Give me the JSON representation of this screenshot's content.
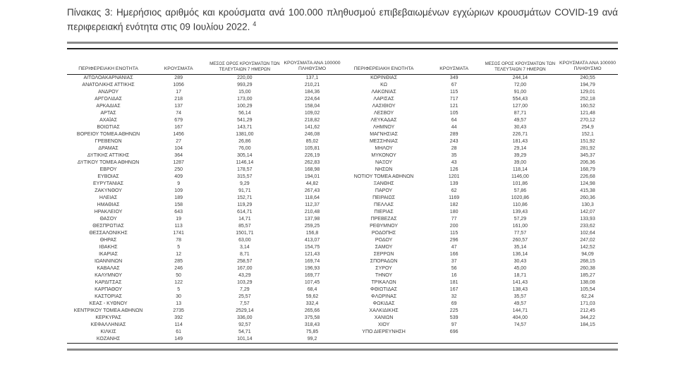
{
  "title": {
    "text": "Πίνακας 3:  Ημερήσιος αριθμός και κρούσματα ανά 100.000 πληθυσμού επιβεβαιωμένων εγχώριων κρουσμάτων COVID-19 ανά περιφερειακή ενότητα στις 09 Ιουλίου 2022.",
    "footnote_marker": "4"
  },
  "colors": {
    "text": "#3a3a3a",
    "rule_thick": "#8a8a8a",
    "rule_thin": "#1f1f1f",
    "background": "#ffffff"
  },
  "columns": [
    "ΠΕΡΙΦΕΡΕΙΑΚΗ ΕΝΟΤΗΤΑ",
    "ΚΡΟΥΣΜΑΤΑ",
    "ΜΕΣΟΣ ΟΡΟΣ ΚΡΟΥΣΜΑΤΩΝ ΤΩΝ ΤΕΛΕΥΤΑΙΩΝ 7 ΗΜΕΡΩΝ",
    "ΚΡΟΥΣΜΑΤΑ ΑΝΑ 100000 ΠΛΗΘΥΣΜΟ"
  ],
  "tables": [
    {
      "rows": [
        [
          "ΑΙΤΩΛΟΑΚΑΡΝΑΝΙΑΣ",
          "289",
          "220,00",
          "137,1"
        ],
        [
          "ΑΝΑΤΟΛΙΚΗΣ ΑΤΤΙΚΗΣ",
          "1056",
          "993,29",
          "210,21"
        ],
        [
          "ΑΝΔΡΟΥ",
          "17",
          "15,00",
          "184,36"
        ],
        [
          "ΑΡΓΟΛΙΔΑΣ",
          "218",
          "173,00",
          "224,64"
        ],
        [
          "ΑΡΚΑΔΙΑΣ",
          "137",
          "100,29",
          "158,04"
        ],
        [
          "ΑΡΤΑΣ",
          "74",
          "56,14",
          "109,02"
        ],
        [
          "ΑΧΑΪΑΣ",
          "679",
          "541,29",
          "218,82"
        ],
        [
          "ΒΟΙΩΤΙΑΣ",
          "167",
          "143,71",
          "141,62"
        ],
        [
          "ΒΟΡΕΙΟΥ ΤΟΜΕΑ ΑΘΗΝΩΝ",
          "1456",
          "1381,00",
          "246,08"
        ],
        [
          "ΓΡΕΒΕΝΩΝ",
          "27",
          "26,86",
          "85,02"
        ],
        [
          "ΔΡΑΜΑΣ",
          "104",
          "76,00",
          "105,81"
        ],
        [
          "ΔΥΤΙΚΗΣ ΑΤΤΙΚΗΣ",
          "364",
          "305,14",
          "226,19"
        ],
        [
          "ΔΥΤΙΚΟΥ ΤΟΜΕΑ ΑΘΗΝΩΝ",
          "1287",
          "1146,14",
          "262,83"
        ],
        [
          "ΕΒΡΟΥ",
          "250",
          "178,57",
          "168,98"
        ],
        [
          "ΕΥΒΟΙΑΣ",
          "409",
          "315,57",
          "194,01"
        ],
        [
          "ΕΥΡΥΤΑΝΙΑΣ",
          "9",
          "9,29",
          "44,82"
        ],
        [
          "ΖΑΚΥΝΘΟΥ",
          "109",
          "91,71",
          "267,43"
        ],
        [
          "ΗΛΕΙΑΣ",
          "189",
          "152,71",
          "118,64"
        ],
        [
          "ΗΜΑΘΙΑΣ",
          "158",
          "119,29",
          "112,37"
        ],
        [
          "ΗΡΑΚΛΕΙΟΥ",
          "643",
          "614,71",
          "210,48"
        ],
        [
          "ΘΑΣΟΥ",
          "19",
          "14,71",
          "137,98"
        ],
        [
          "ΘΕΣΠΡΩΤΙΑΣ",
          "113",
          "85,57",
          "259,25"
        ],
        [
          "ΘΕΣΣΑΛΟΝΙΚΗΣ",
          "1741",
          "1501,71",
          "156,8"
        ],
        [
          "ΘΗΡΑΣ",
          "78",
          "63,00",
          "413,07"
        ],
        [
          "ΙΘΑΚΗΣ",
          "5",
          "3,14",
          "154,75"
        ],
        [
          "ΙΚΑΡΙΑΣ",
          "12",
          "8,71",
          "121,43"
        ],
        [
          "ΙΩΑΝΝΙΝΩΝ",
          "285",
          "258,57",
          "169,74"
        ],
        [
          "ΚΑΒΑΛΑΣ",
          "246",
          "167,00",
          "196,93"
        ],
        [
          "ΚΑΛΥΜΝΟΥ",
          "50",
          "43,29",
          "169,77"
        ],
        [
          "ΚΑΡΔΙΤΣΑΣ",
          "122",
          "103,29",
          "107,45"
        ],
        [
          "ΚΑΡΠΑΘΟΥ",
          "5",
          "7,29",
          "68,4"
        ],
        [
          "ΚΑΣΤΟΡΙΑΣ",
          "30",
          "25,57",
          "59,62"
        ],
        [
          "ΚΕΑΣ - ΚΥΘΝΟΥ",
          "13",
          "7,57",
          "332,4"
        ],
        [
          "ΚΕΝΤΡΙΚΟΥ ΤΟΜΕΑ ΑΘΗΝΩΝ",
          "2735",
          "2529,14",
          "265,66"
        ],
        [
          "ΚΕΡΚΥΡΑΣ",
          "392",
          "336,00",
          "375,58"
        ],
        [
          "ΚΕΦΑΛΛΗΝΙΑΣ",
          "114",
          "92,57",
          "318,43"
        ],
        [
          "ΚΙΛΚΙΣ",
          "61",
          "54,71",
          "75,85"
        ],
        [
          "ΚΟΖΑΝΗΣ",
          "149",
          "101,14",
          "99,2"
        ]
      ]
    },
    {
      "rows": [
        [
          "ΚΟΡΙΝΘΙΑΣ",
          "349",
          "244,14",
          "240,55"
        ],
        [
          "ΚΩ",
          "67",
          "72,00",
          "194,79"
        ],
        [
          "ΛΑΚΩΝΙΑΣ",
          "115",
          "91,00",
          "129,01"
        ],
        [
          "ΛΑΡΙΣΑΣ",
          "717",
          "554,43",
          "252,18"
        ],
        [
          "ΛΑΣΙΘΙΟΥ",
          "121",
          "127,00",
          "160,52"
        ],
        [
          "ΛΕΣΒΟΥ",
          "105",
          "87,71",
          "121,48"
        ],
        [
          "ΛΕΥΚΑΔΑΣ",
          "64",
          "49,57",
          "270,12"
        ],
        [
          "ΛΗΜΝΟΥ",
          "44",
          "30,43",
          "254,9"
        ],
        [
          "ΜΑΓΝΗΣΙΑΣ",
          "289",
          "226,71",
          "152,1"
        ],
        [
          "ΜΕΣΣΗΝΙΑΣ",
          "243",
          "181,43",
          "151,92"
        ],
        [
          "ΜΗΛΟΥ",
          "28",
          "29,14",
          "281,92"
        ],
        [
          "ΜΥΚΟΝΟΥ",
          "35",
          "39,29",
          "345,37"
        ],
        [
          "ΝΑΞΟΥ",
          "43",
          "39,00",
          "206,36"
        ],
        [
          "ΝΗΣΩΝ",
          "126",
          "118,14",
          "168,79"
        ],
        [
          "ΝΟΤΙΟΥ ΤΟΜΕΑ ΑΘΗΝΩΝ",
          "1201",
          "1146,00",
          "226,68"
        ],
        [
          "ΞΑΝΘΗΣ",
          "139",
          "101,86",
          "124,98"
        ],
        [
          "ΠΑΡΟΥ",
          "62",
          "57,86",
          "415,38"
        ],
        [
          "ΠΕΙΡΑΙΩΣ",
          "1169",
          "1020,86",
          "260,36"
        ],
        [
          "ΠΕΛΛΑΣ",
          "182",
          "110,86",
          "130,3"
        ],
        [
          "ΠΙΕΡΙΑΣ",
          "180",
          "139,43",
          "142,07"
        ],
        [
          "ΠΡΕΒΕΖΑΣ",
          "77",
          "57,29",
          "133,93"
        ],
        [
          "ΡΕΘΥΜΝΟΥ",
          "200",
          "161,00",
          "233,62"
        ],
        [
          "ΡΟΔΟΠΗΣ",
          "115",
          "77,57",
          "102,64"
        ],
        [
          "ΡΟΔΟΥ",
          "296",
          "260,57",
          "247,02"
        ],
        [
          "ΣΑΜΟΥ",
          "47",
          "35,14",
          "142,52"
        ],
        [
          "ΣΕΡΡΩΝ",
          "166",
          "136,14",
          "94,09"
        ],
        [
          "ΣΠΟΡΑΔΩΝ",
          "37",
          "30,43",
          "268,15"
        ],
        [
          "ΣΥΡΟΥ",
          "56",
          "45,00",
          "260,38"
        ],
        [
          "ΤΗΝΟΥ",
          "16",
          "18,71",
          "185,27"
        ],
        [
          "ΤΡΙΚΑΛΩΝ",
          "181",
          "141,43",
          "138,08"
        ],
        [
          "ΦΘΙΩΤΙΔΑΣ",
          "167",
          "138,43",
          "105,54"
        ],
        [
          "ΦΛΩΡΙΝΑΣ",
          "32",
          "35,57",
          "62,24"
        ],
        [
          "ΦΩΚΙΔΑΣ",
          "69",
          "49,57",
          "171,03"
        ],
        [
          "ΧΑΛΚΙΔΙΚΗΣ",
          "225",
          "144,71",
          "212,45"
        ],
        [
          "ΧΑΝΙΩΝ",
          "539",
          "404,00",
          "344,22"
        ],
        [
          "ΧΙΟΥ",
          "97",
          "74,57",
          "184,15"
        ],
        [
          "ΥΠΟ ΔΙΕΡΕΥΝΗΣΗ",
          "696",
          "",
          ""
        ]
      ]
    }
  ]
}
